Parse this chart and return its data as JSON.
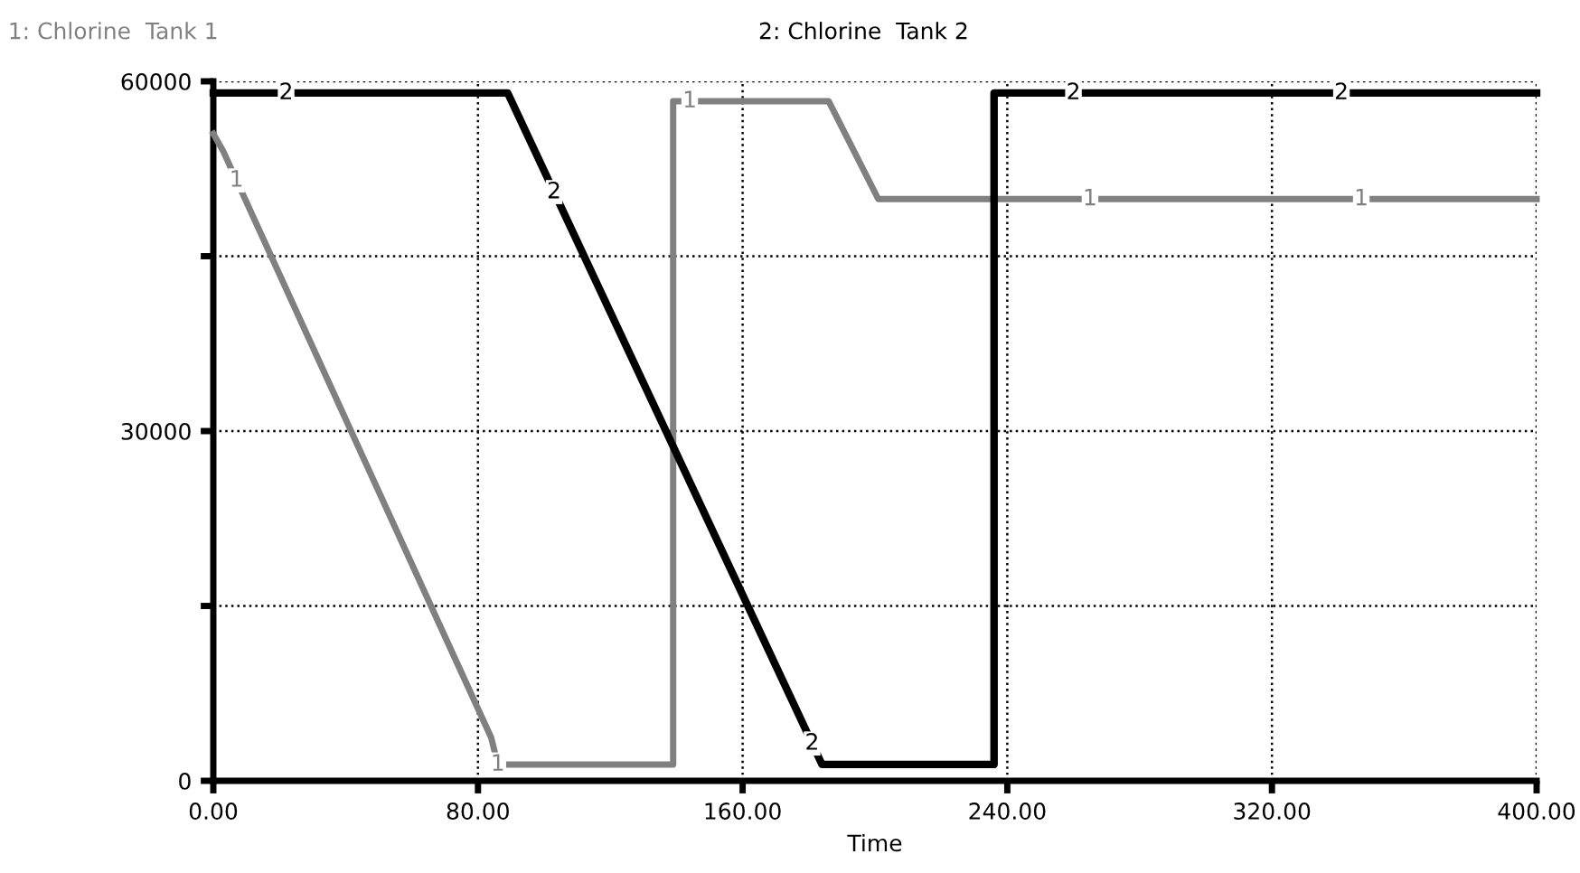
{
  "chart_data": {
    "type": "line",
    "xlabel": "Time",
    "legend": "top",
    "grid": true,
    "line_style": "solid",
    "marker": "none",
    "xlim": [
      0,
      400
    ],
    "xticks": [
      {
        "value": 0,
        "label": "0.00"
      },
      {
        "value": 80,
        "label": "80.00"
      },
      {
        "value": 160,
        "label": "160.00"
      },
      {
        "value": 240,
        "label": "240.00"
      },
      {
        "value": 320,
        "label": "320.00"
      },
      {
        "value": 400,
        "label": "400.00"
      }
    ],
    "ylim": [
      0,
      60000
    ],
    "yticks": [
      0,
      {
        "value": 15000,
        "label": null
      },
      30000,
      {
        "value": 45000,
        "label": null
      },
      60000
    ],
    "series": [
      {
        "name": "1: Chlorine  Tank 1",
        "color": "#808080",
        "x": [
          0,
          3,
          84,
          86,
          139,
          139,
          186,
          201,
          400
        ],
        "values": [
          55500,
          54000,
          3700,
          1400,
          1400,
          58300,
          58300,
          49900,
          49900
        ]
      },
      {
        "name": "2: Chlorine  Tank 2",
        "color": "#000000",
        "x": [
          0,
          89,
          184,
          236,
          236,
          400
        ],
        "values": [
          59000,
          59000,
          1400,
          1400,
          59000,
          59000
        ]
      }
    ],
    "annotations": [
      {
        "text": "1",
        "x": 7,
        "y": 51500
      },
      {
        "text": "1",
        "x": 86,
        "y": 1400
      },
      {
        "text": "1",
        "x": 144,
        "y": 58300
      },
      {
        "text": "1",
        "x": 265,
        "y": 49900
      },
      {
        "text": "1",
        "x": 347,
        "y": 49900
      },
      {
        "text": "2",
        "x": 22,
        "y": 59000
      },
      {
        "text": "2",
        "x": 103,
        "y": 50500
      },
      {
        "text": "2",
        "x": 181,
        "y": 3200
      },
      {
        "text": "2",
        "x": 260,
        "y": 59000
      },
      {
        "text": "2",
        "x": 341,
        "y": 59000
      }
    ]
  }
}
